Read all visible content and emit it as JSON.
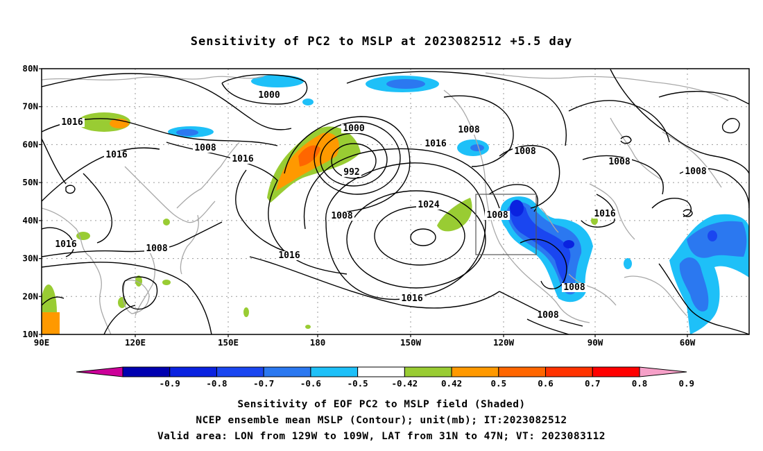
{
  "title": "Sensitivity of PC2 to MSLP at 2023082512 +5.5 day",
  "axes": {
    "y_ticks": [
      "80N",
      "70N",
      "60N",
      "50N",
      "40N",
      "30N",
      "20N",
      "10N"
    ],
    "x_ticks": [
      "90E",
      "120E",
      "150E",
      "180",
      "150W",
      "120W",
      "90W",
      "60W"
    ]
  },
  "contour_labels": [
    "1000",
    "1016",
    "1008",
    "1016",
    "1016",
    "1000",
    "992",
    "1008",
    "1016",
    "1008",
    "1008",
    "1008",
    "1024",
    "1008",
    "1008",
    "1016",
    "1016",
    "1008",
    "1016",
    "1008",
    "1008",
    "1016"
  ],
  "colorbar": {
    "labels": [
      "-0.9",
      "-0.8",
      "-0.7",
      "-0.6",
      "-0.5",
      "-0.42",
      "0.42",
      "0.5",
      "0.6",
      "0.7",
      "0.8",
      "0.9"
    ],
    "colors": [
      "#0000b0",
      "#0a22e0",
      "#1a46f0",
      "#2b78f0",
      "#1ec0f8",
      "#ffffff",
      "#99cc33",
      "#ff9900",
      "#ff6600",
      "#ff3300",
      "#ff0000"
    ],
    "end_left_color": "#cc0099",
    "end_right_color": "#f6a0c8"
  },
  "caption": [
    "Sensitivity of EOF PC2 to MSLP field (Shaded)",
    "NCEP ensemble mean MSLP (Contour); unit(mb); IT:2023082512",
    "Valid area: LON from 129W to 109W, LAT from 31N to 47N; VT: 2023083112"
  ],
  "valid_area": {
    "lon": [
      -129,
      -109
    ],
    "lat": [
      31,
      47
    ]
  }
}
